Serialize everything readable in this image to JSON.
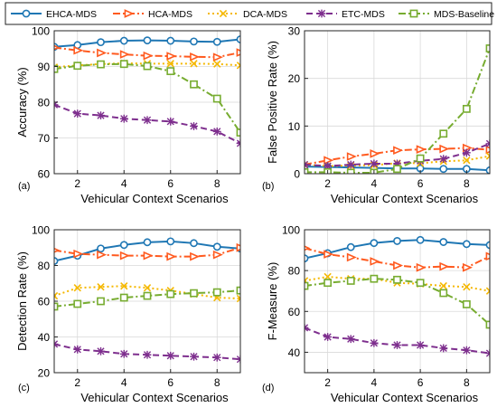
{
  "legend": {
    "entries": [
      {
        "name": "EHCA-MDS",
        "color": "#1f77b4",
        "dash": "solid",
        "marker": "circle"
      },
      {
        "name": "HCA-MDS",
        "color": "#ff5a1f",
        "dash": "dashdot",
        "marker": "triangle-right"
      },
      {
        "name": "DCA-MDS",
        "color": "#f5b800",
        "dash": "dotted",
        "marker": "x"
      },
      {
        "name": "ETC-MDS",
        "color": "#7e2f8e",
        "dash": "dashed",
        "marker": "star"
      },
      {
        "name": "MDS-Baseline",
        "color": "#77ac30",
        "dash": "dashdot",
        "marker": "square"
      }
    ]
  },
  "chart_data": [
    {
      "type": "line",
      "panel_label": "(a)",
      "xlabel": "Vehicular Context Scenarios",
      "ylabel": "Accuracy (%)",
      "xlim": [
        1,
        9
      ],
      "ylim": [
        60,
        100
      ],
      "xticks": [
        2,
        4,
        6,
        8
      ],
      "yticks": [
        60,
        70,
        80,
        90,
        100
      ],
      "grid": true,
      "x": [
        1,
        2,
        3,
        4,
        5,
        6,
        7,
        8,
        9
      ],
      "series": [
        {
          "name": "EHCA-MDS",
          "values": [
            95.5,
            96.0,
            96.8,
            97.2,
            97.3,
            97.2,
            97.0,
            96.9,
            97.6
          ]
        },
        {
          "name": "HCA-MDS",
          "values": [
            95.3,
            94.5,
            93.8,
            93.4,
            93.0,
            92.9,
            92.7,
            92.6,
            93.9
          ]
        },
        {
          "name": "DCA-MDS",
          "values": [
            89.8,
            90.3,
            90.7,
            90.9,
            90.8,
            90.8,
            90.8,
            90.7,
            90.3
          ]
        },
        {
          "name": "ETC-MDS",
          "values": [
            79.3,
            76.8,
            76.3,
            75.4,
            75.0,
            74.6,
            73.3,
            71.8,
            68.5
          ]
        },
        {
          "name": "MDS-Baseline",
          "values": [
            89.3,
            90.2,
            90.6,
            90.7,
            90.1,
            88.7,
            85.0,
            81.0,
            71.5
          ]
        }
      ]
    },
    {
      "type": "line",
      "panel_label": "(b)",
      "xlabel": "Vehicular Context Scenarios",
      "ylabel": "False Positive Rate (%)",
      "xlim": [
        1,
        9
      ],
      "ylim": [
        0,
        30
      ],
      "xticks": [
        2,
        4,
        6,
        8
      ],
      "yticks": [
        0,
        10,
        20,
        30
      ],
      "grid": true,
      "x": [
        1,
        2,
        3,
        4,
        5,
        6,
        7,
        8,
        9
      ],
      "series": [
        {
          "name": "EHCA-MDS",
          "values": [
            1.5,
            1.4,
            1.3,
            1.2,
            1.1,
            1.1,
            1.0,
            1.0,
            0.7
          ]
        },
        {
          "name": "HCA-MDS",
          "values": [
            1.9,
            2.8,
            3.6,
            4.2,
            4.9,
            5.1,
            5.2,
            5.4,
            5.0
          ]
        },
        {
          "name": "DCA-MDS",
          "values": [
            1.9,
            1.6,
            1.7,
            1.8,
            2.2,
            2.2,
            2.6,
            2.8,
            3.7
          ]
        },
        {
          "name": "ETC-MDS",
          "values": [
            1.9,
            1.6,
            1.9,
            2.1,
            2.1,
            2.7,
            3.1,
            4.4,
            6.3
          ]
        },
        {
          "name": "MDS-Baseline",
          "values": [
            0.3,
            0.3,
            0.2,
            0.2,
            1.0,
            3.2,
            8.4,
            13.6,
            26.3
          ]
        }
      ]
    },
    {
      "type": "line",
      "panel_label": "(c)",
      "xlabel": "Vehicular Context Scenarios",
      "ylabel": "Detection Rate (%)",
      "xlim": [
        1,
        9
      ],
      "ylim": [
        20,
        100
      ],
      "xticks": [
        2,
        4,
        6,
        8
      ],
      "yticks": [
        20,
        40,
        60,
        80,
        100
      ],
      "grid": true,
      "x": [
        1,
        2,
        3,
        4,
        5,
        6,
        7,
        8,
        9
      ],
      "series": [
        {
          "name": "EHCA-MDS",
          "values": [
            82.5,
            85.5,
            89.5,
            91.5,
            93.0,
            93.5,
            92.5,
            90.5,
            89.5
          ]
        },
        {
          "name": "HCA-MDS",
          "values": [
            88.5,
            86.5,
            86.0,
            85.5,
            85.5,
            85.0,
            85.0,
            86.0,
            90.0
          ]
        },
        {
          "name": "DCA-MDS",
          "values": [
            63.0,
            67.5,
            68.0,
            68.5,
            67.5,
            66.0,
            64.0,
            62.0,
            61.5
          ]
        },
        {
          "name": "ETC-MDS",
          "values": [
            36.0,
            33.0,
            32.0,
            30.5,
            30.0,
            29.5,
            29.0,
            28.5,
            27.5
          ]
        },
        {
          "name": "MDS-Baseline",
          "values": [
            57.0,
            58.5,
            60.0,
            62.0,
            63.0,
            64.0,
            64.5,
            65.0,
            66.0
          ]
        }
      ]
    },
    {
      "type": "line",
      "panel_label": "(d)",
      "xlabel": "Vehicular Context Scenarios",
      "ylabel": "F-Measure (%)",
      "xlim": [
        1,
        9
      ],
      "ylim": [
        30,
        100
      ],
      "xticks": [
        2,
        4,
        6,
        8
      ],
      "yticks": [
        40,
        60,
        80,
        100
      ],
      "grid": true,
      "x": [
        1,
        2,
        3,
        4,
        5,
        6,
        7,
        8,
        9
      ],
      "series": [
        {
          "name": "EHCA-MDS",
          "values": [
            86.0,
            88.5,
            91.5,
            93.5,
            94.5,
            95.0,
            94.0,
            93.0,
            92.5
          ]
        },
        {
          "name": "HCA-MDS",
          "values": [
            91.0,
            88.0,
            86.5,
            84.5,
            82.5,
            81.5,
            82.0,
            81.5,
            87.0
          ]
        },
        {
          "name": "DCA-MDS",
          "values": [
            75.0,
            77.0,
            76.0,
            76.0,
            74.0,
            73.5,
            72.5,
            72.0,
            70.0
          ]
        },
        {
          "name": "ETC-MDS",
          "values": [
            52.0,
            47.5,
            46.5,
            44.5,
            43.5,
            43.5,
            42.0,
            41.0,
            39.5
          ]
        },
        {
          "name": "MDS-Baseline",
          "values": [
            72.5,
            74.0,
            75.0,
            76.0,
            75.5,
            74.0,
            69.0,
            63.5,
            53.5
          ]
        }
      ]
    }
  ]
}
